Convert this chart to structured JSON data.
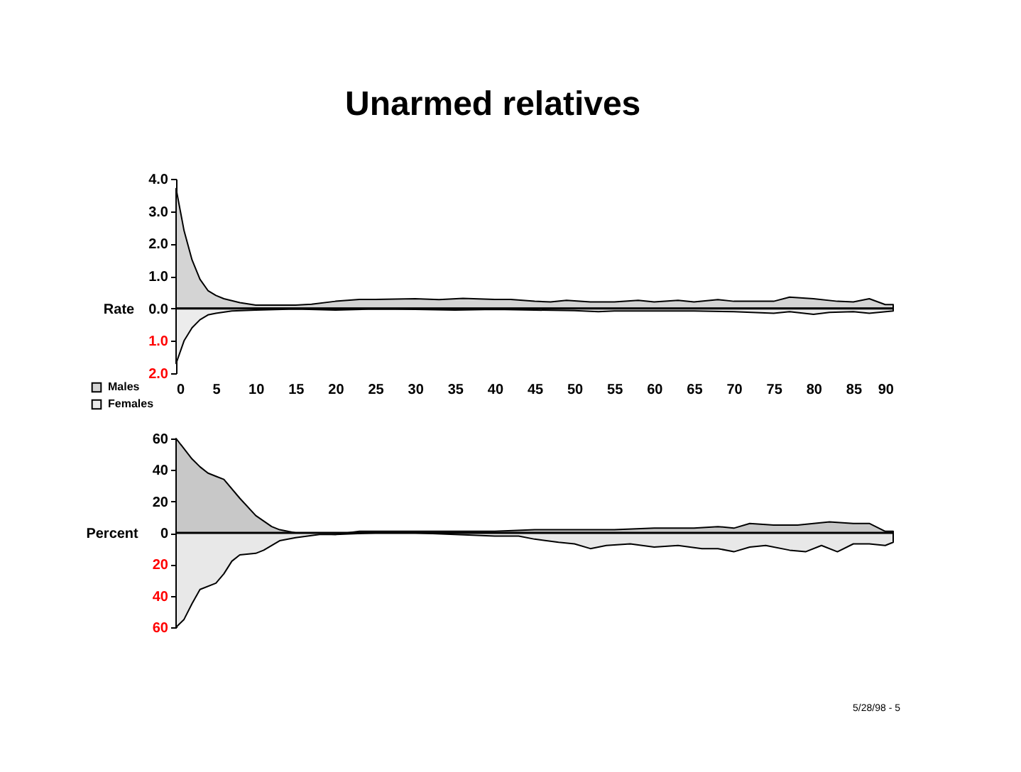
{
  "chart_data": [
    {
      "type": "area",
      "title": "Unarmed relatives",
      "ylabel": "Rate",
      "xlim": [
        0,
        90
      ],
      "xticks": [
        0,
        5,
        10,
        15,
        20,
        25,
        30,
        35,
        40,
        45,
        50,
        55,
        60,
        65,
        70,
        75,
        80,
        85,
        90
      ],
      "ylim": [
        -2,
        4
      ],
      "yticks": [
        {
          "value": -2,
          "label": "2.0"
        },
        {
          "value": -1,
          "label": "1.0"
        },
        {
          "value": 0,
          "label": "0.0"
        },
        {
          "value": 1,
          "label": "1.0"
        },
        {
          "value": 2,
          "label": "2.0"
        },
        {
          "value": 3,
          "label": "3.0"
        },
        {
          "value": 4,
          "label": "4.0"
        }
      ],
      "grid": false,
      "legend": "bottom left",
      "ref_lines": [
        {
          "axis": "y",
          "value": 0
        }
      ],
      "series": [
        {
          "name": "Males",
          "color": "#d4d4d4",
          "x": [
            0,
            1,
            2,
            3,
            4,
            5,
            6,
            8,
            10,
            15,
            17,
            20,
            23,
            25,
            30,
            33,
            36,
            40,
            42,
            45,
            47,
            49,
            52,
            55,
            58,
            60,
            63,
            65,
            68,
            70,
            75,
            77,
            80,
            83,
            85,
            87,
            89,
            90
          ],
          "values": [
            3.7,
            2.4,
            1.5,
            0.9,
            0.55,
            0.4,
            0.3,
            0.18,
            0.1,
            0.1,
            0.13,
            0.22,
            0.28,
            0.28,
            0.3,
            0.27,
            0.31,
            0.28,
            0.28,
            0.22,
            0.2,
            0.25,
            0.2,
            0.2,
            0.25,
            0.2,
            0.25,
            0.2,
            0.27,
            0.22,
            0.22,
            0.35,
            0.3,
            0.22,
            0.2,
            0.3,
            0.12,
            0.12
          ]
        },
        {
          "name": "Females",
          "color": "#ececec",
          "x": [
            0,
            1,
            2,
            3,
            4,
            5,
            7,
            10,
            15,
            20,
            25,
            30,
            35,
            40,
            45,
            50,
            53,
            55,
            60,
            65,
            70,
            75,
            77,
            80,
            82,
            85,
            87,
            90
          ],
          "values": [
            -1.7,
            -1.0,
            -0.6,
            -0.35,
            -0.2,
            -0.15,
            -0.08,
            -0.05,
            -0.02,
            -0.05,
            -0.02,
            -0.03,
            -0.05,
            -0.03,
            -0.05,
            -0.07,
            -0.1,
            -0.08,
            -0.08,
            -0.08,
            -0.1,
            -0.15,
            -0.1,
            -0.18,
            -0.12,
            -0.1,
            -0.15,
            -0.08
          ]
        }
      ]
    },
    {
      "type": "area",
      "ylabel": "Percent",
      "xlim": [
        0,
        90
      ],
      "tick_labels": "y",
      "ylim": [
        -60,
        60
      ],
      "yticks": [
        {
          "value": -60,
          "label": "60"
        },
        {
          "value": -40,
          "label": "40"
        },
        {
          "value": -20,
          "label": "20"
        },
        0,
        20,
        40,
        60
      ],
      "grid": false,
      "annotations": [
        "5/28/98 - 5"
      ],
      "ref_lines": [
        {
          "axis": "y",
          "value": 0
        }
      ],
      "series": [
        {
          "color": "#c8c8c8",
          "x": [
            0,
            2,
            3,
            4,
            5,
            6,
            8,
            10,
            12,
            13,
            15,
            20,
            23,
            30,
            40,
            45,
            50,
            55,
            60,
            65,
            68,
            70,
            72,
            75,
            78,
            82,
            85,
            87,
            89,
            90
          ],
          "values": [
            60,
            47,
            42,
            38,
            36,
            34,
            22,
            11,
            4,
            2,
            0,
            -1,
            1,
            1,
            1,
            2,
            2,
            2,
            3,
            3,
            4,
            3,
            6,
            5,
            5,
            7,
            6,
            6,
            1,
            1
          ]
        },
        {
          "color": "#e8e8e8",
          "x": [
            0,
            1,
            2,
            3,
            5,
            6,
            7,
            8,
            10,
            11,
            13,
            15,
            18,
            20,
            25,
            30,
            35,
            40,
            43,
            45,
            48,
            50,
            52,
            54,
            57,
            60,
            63,
            66,
            68,
            70,
            72,
            74,
            77,
            79,
            81,
            83,
            85,
            87,
            89,
            90
          ],
          "values": [
            -60,
            -55,
            -45,
            -36,
            -32,
            -26,
            -18,
            -14,
            -13,
            -11,
            -5,
            -3,
            -1,
            -1,
            0,
            0,
            -1,
            -2,
            -2,
            -4,
            -6,
            -7,
            -10,
            -8,
            -7,
            -9,
            -8,
            -10,
            -10,
            -12,
            -9,
            -8,
            -11,
            -12,
            -8,
            -12,
            -7,
            -7,
            -8,
            -6
          ]
        }
      ]
    }
  ]
}
